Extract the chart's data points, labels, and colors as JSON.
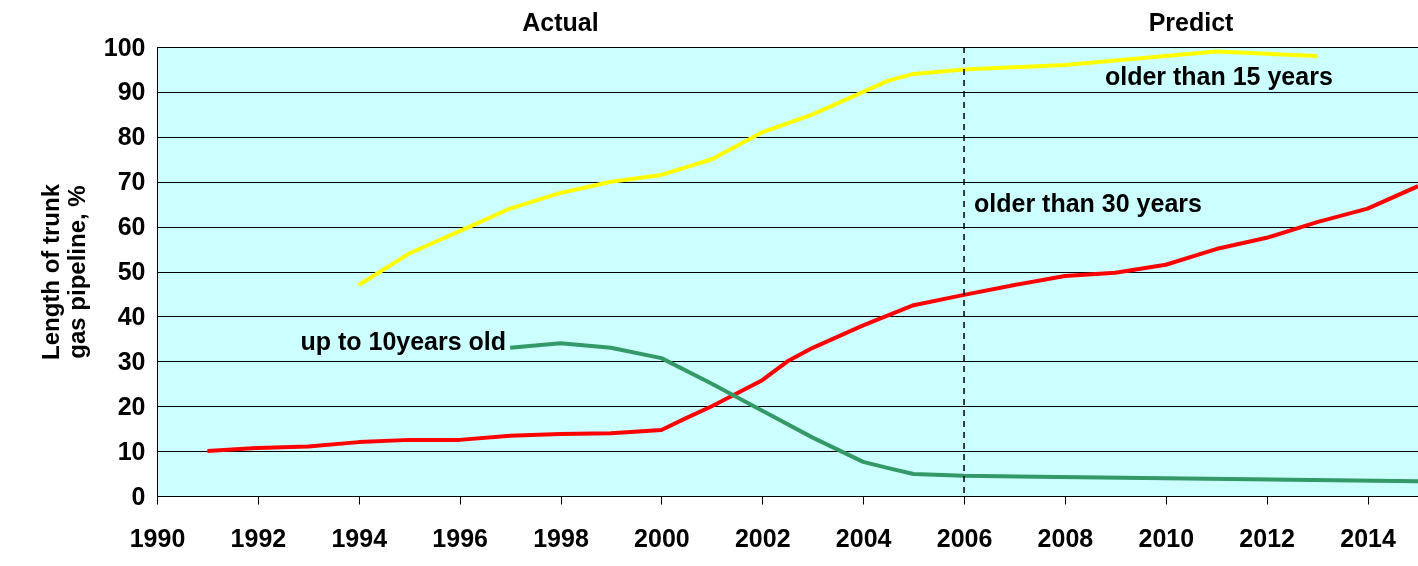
{
  "chart_data": {
    "type": "line",
    "ylabel": "Length of trunk gas pipeline, %",
    "xlim": [
      1990,
      2015
    ],
    "xticks": [
      1990,
      1992,
      1994,
      1996,
      1998,
      2000,
      2002,
      2004,
      2006,
      2008,
      2010,
      2012,
      2014
    ],
    "ylim": [
      0,
      100
    ],
    "yticks": [
      0,
      10,
      20,
      30,
      40,
      50,
      60,
      70,
      80,
      90,
      100
    ],
    "grid": "y",
    "marker": "none",
    "line_style": "solid",
    "legend": false,
    "series": [
      {
        "name": "older than 15 years",
        "color": "#ffff00",
        "x": [
          1994,
          1995,
          1996,
          1997,
          1998,
          1999,
          2000,
          2001,
          2002,
          2003,
          2004,
          2004.5,
          2005,
          2006,
          2008,
          2010,
          2011,
          2012,
          2013
        ],
        "values": [
          47,
          54,
          59,
          64,
          67.5,
          70,
          71.5,
          75,
          81,
          85,
          90,
          92.5,
          94,
          95,
          96,
          98,
          99,
          98.5,
          98
        ]
      },
      {
        "name": "older than 30 years",
        "color": "#ff0000",
        "x": [
          1991,
          1992,
          1993,
          1994,
          1995,
          1996,
          1997,
          1998,
          1999,
          2000,
          2000.5,
          2001,
          2002,
          2002.5,
          2003,
          2004,
          2005,
          2006,
          2007,
          2008,
          2009,
          2010,
          2011,
          2012,
          2013,
          2014,
          2015
        ],
        "values": [
          10,
          10.7,
          11,
          12,
          12.5,
          12.5,
          13.4,
          13.8,
          14,
          14.7,
          17.4,
          20,
          25.8,
          30,
          33,
          38,
          42.5,
          44.8,
          47,
          49,
          49.7,
          51.5,
          55,
          57.5,
          61,
          64,
          69
        ]
      },
      {
        "name": "up to 10years old",
        "color": "#339966",
        "x": [
          1997,
          1998,
          1999,
          2000,
          2001,
          2002,
          2003,
          2004,
          2004.5,
          2005,
          2006,
          2015
        ],
        "values": [
          33,
          34,
          33,
          30.7,
          25,
          19,
          13,
          7.6,
          6.2,
          4.9,
          4.5,
          3.3
        ]
      }
    ],
    "ref_lines": [
      {
        "axis": "x",
        "value": 2006,
        "line_style": "dashed",
        "color": "#000000"
      }
    ],
    "annotations": [
      "Actual",
      "Predict"
    ]
  }
}
